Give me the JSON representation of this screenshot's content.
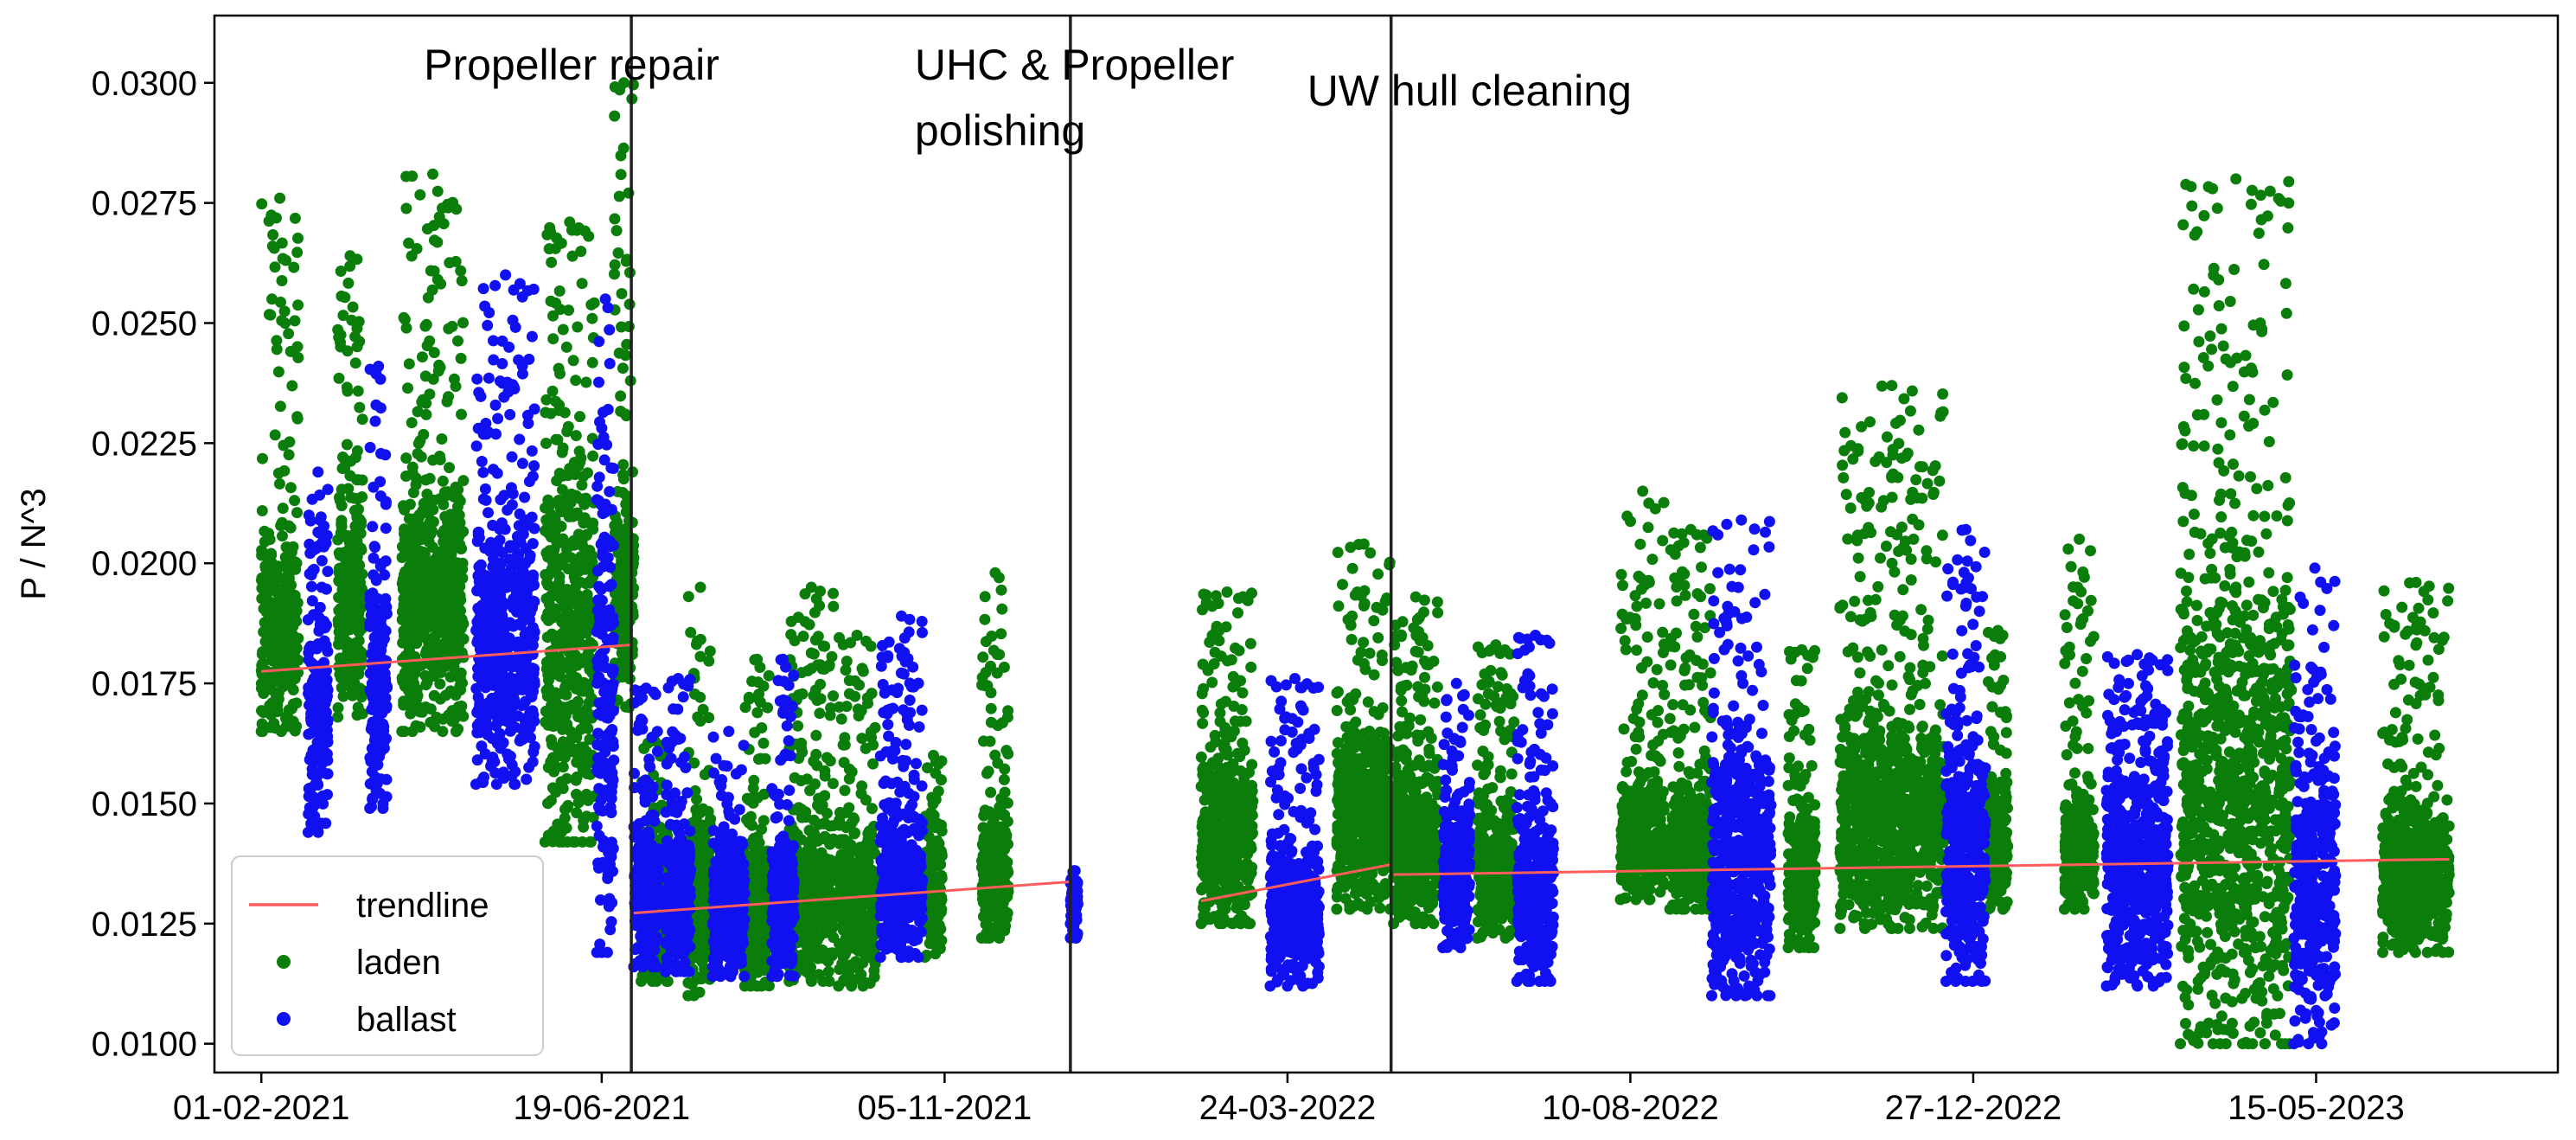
{
  "chart_data": {
    "type": "scatter",
    "title": "",
    "xlabel": "",
    "ylabel": "P / N^3",
    "x_type": "date",
    "xlim": [
      "2021-01-13",
      "2023-08-21"
    ],
    "ylim": [
      0.0094,
      0.0314
    ],
    "x_tick_labels": [
      "01-02-2021",
      "19-06-2021",
      "05-11-2021",
      "24-03-2022",
      "10-08-2022",
      "27-12-2022",
      "15-05-2023"
    ],
    "x_tick_dates": [
      "2021-02-01",
      "2021-06-19",
      "2021-11-05",
      "2022-03-24",
      "2022-08-10",
      "2022-12-27",
      "2023-05-15"
    ],
    "y_ticks": [
      0.01,
      0.0125,
      0.015,
      0.0175,
      0.02,
      0.0225,
      0.025,
      0.0275,
      0.03
    ],
    "y_tick_labels": [
      "0.0100",
      "0.0125",
      "0.0150",
      "0.0175",
      "0.0200",
      "0.0225",
      "0.0250",
      "0.0275",
      "0.0300"
    ],
    "grid": false,
    "legend_position": "bottom-left",
    "legend": [
      {
        "label": "trendline",
        "kind": "line",
        "color": "#ff5c5c"
      },
      {
        "label": "laden",
        "kind": "marker",
        "color": "#0a7d0a"
      },
      {
        "label": "ballast",
        "kind": "marker",
        "color": "#1010f0"
      }
    ],
    "events": [
      {
        "date": "2021-07-01",
        "label_lines": [
          "Propeller repair"
        ]
      },
      {
        "date": "2021-12-26",
        "label_lines": [
          "UHC & Propeller",
          "polishing"
        ]
      },
      {
        "date": "2022-05-05",
        "label_lines": [
          "UW hull cleaning"
        ]
      }
    ],
    "trendlines": [
      {
        "x": [
          "2021-02-01",
          "2021-07-01"
        ],
        "y": [
          0.01775,
          0.0183
        ]
      },
      {
        "x": [
          "2021-07-02",
          "2021-12-26"
        ],
        "y": [
          0.01272,
          0.01337
        ]
      },
      {
        "x": [
          "2022-02-17",
          "2022-05-05"
        ],
        "y": [
          0.01297,
          0.01373
        ]
      },
      {
        "x": [
          "2022-05-06",
          "2023-07-08"
        ],
        "y": [
          0.01352,
          0.01384
        ]
      }
    ],
    "series": [
      {
        "name": "laden",
        "color": "#0a7d0a",
        "clusters": [
          {
            "start": "2021-02-01",
            "end": "2021-02-16",
            "ymin": 0.0165,
            "ymax": 0.0276,
            "center": 0.0186
          },
          {
            "start": "2021-03-04",
            "end": "2021-03-14",
            "ymin": 0.0168,
            "ymax": 0.0264,
            "center": 0.0193
          },
          {
            "start": "2021-03-30",
            "end": "2021-04-24",
            "ymin": 0.0165,
            "ymax": 0.0281,
            "center": 0.0192
          },
          {
            "start": "2021-05-27",
            "end": "2021-06-16",
            "ymin": 0.0142,
            "ymax": 0.0271,
            "center": 0.0187
          },
          {
            "start": "2021-06-24",
            "end": "2021-07-02",
            "ymin": 0.017,
            "ymax": 0.03,
            "center": 0.0192
          },
          {
            "start": "2021-07-05",
            "end": "2021-07-16",
            "ymin": 0.0113,
            "ymax": 0.0163,
            "center": 0.0131
          },
          {
            "start": "2021-07-24",
            "end": "2021-08-03",
            "ymin": 0.011,
            "ymax": 0.0195,
            "center": 0.0131
          },
          {
            "start": "2021-08-16",
            "end": "2021-08-26",
            "ymin": 0.0112,
            "ymax": 0.018,
            "center": 0.0129
          },
          {
            "start": "2021-09-03",
            "end": "2021-09-21",
            "ymin": 0.0113,
            "ymax": 0.0195,
            "center": 0.0131
          },
          {
            "start": "2021-09-23",
            "end": "2021-10-08",
            "ymin": 0.0112,
            "ymax": 0.0185,
            "center": 0.0129
          },
          {
            "start": "2021-10-28",
            "end": "2021-11-04",
            "ymin": 0.0118,
            "ymax": 0.016,
            "center": 0.0133
          },
          {
            "start": "2021-11-20",
            "end": "2021-12-01",
            "ymin": 0.0122,
            "ymax": 0.0198,
            "center": 0.0135
          },
          {
            "start": "2022-02-17",
            "end": "2022-03-10",
            "ymin": 0.0125,
            "ymax": 0.0194,
            "center": 0.0143
          },
          {
            "start": "2022-04-13",
            "end": "2022-05-05",
            "ymin": 0.0128,
            "ymax": 0.0204,
            "center": 0.0148
          },
          {
            "start": "2022-05-06",
            "end": "2022-05-24",
            "ymin": 0.0125,
            "ymax": 0.0193,
            "center": 0.0143
          },
          {
            "start": "2022-06-09",
            "end": "2022-06-24",
            "ymin": 0.0122,
            "ymax": 0.0183,
            "center": 0.0136
          },
          {
            "start": "2022-08-06",
            "end": "2022-08-24",
            "ymin": 0.013,
            "ymax": 0.0215,
            "center": 0.0143
          },
          {
            "start": "2022-08-26",
            "end": "2022-09-12",
            "ymin": 0.0128,
            "ymax": 0.0207,
            "center": 0.0141
          },
          {
            "start": "2022-10-13",
            "end": "2022-10-24",
            "ymin": 0.012,
            "ymax": 0.0182,
            "center": 0.0135
          },
          {
            "start": "2022-11-03",
            "end": "2022-12-15",
            "ymin": 0.0124,
            "ymax": 0.0237,
            "center": 0.0147
          },
          {
            "start": "2023-01-02",
            "end": "2023-01-10",
            "ymin": 0.0128,
            "ymax": 0.0186,
            "center": 0.0141
          },
          {
            "start": "2023-02-02",
            "end": "2023-02-14",
            "ymin": 0.0128,
            "ymax": 0.0205,
            "center": 0.014
          },
          {
            "start": "2023-03-21",
            "end": "2023-05-05",
            "ymin": 0.01,
            "ymax": 0.028,
            "center": 0.0152
          },
          {
            "start": "2023-06-11",
            "end": "2023-07-08",
            "ymin": 0.0119,
            "ymax": 0.0196,
            "center": 0.0135
          }
        ]
      },
      {
        "name": "ballast",
        "color": "#1010f0",
        "clusters": [
          {
            "start": "2021-02-20",
            "end": "2021-02-28",
            "ymin": 0.0144,
            "ymax": 0.0219,
            "center": 0.0168
          },
          {
            "start": "2021-03-17",
            "end": "2021-03-24",
            "ymin": 0.0149,
            "ymax": 0.0241,
            "center": 0.0174
          },
          {
            "start": "2021-04-29",
            "end": "2021-05-23",
            "ymin": 0.0154,
            "ymax": 0.026,
            "center": 0.0183
          },
          {
            "start": "2021-06-17",
            "end": "2021-06-24",
            "ymin": 0.0119,
            "ymax": 0.0255,
            "center": 0.0173
          },
          {
            "start": "2021-07-02",
            "end": "2021-07-12",
            "ymin": 0.0116,
            "ymax": 0.0174,
            "center": 0.0132
          },
          {
            "start": "2021-07-15",
            "end": "2021-07-25",
            "ymin": 0.0115,
            "ymax": 0.0176,
            "center": 0.013
          },
          {
            "start": "2021-08-03",
            "end": "2021-08-16",
            "ymin": 0.0114,
            "ymax": 0.0165,
            "center": 0.013
          },
          {
            "start": "2021-08-27",
            "end": "2021-09-05",
            "ymin": 0.0114,
            "ymax": 0.018,
            "center": 0.013
          },
          {
            "start": "2021-10-10",
            "end": "2021-10-27",
            "ymin": 0.0118,
            "ymax": 0.0189,
            "center": 0.0134
          },
          {
            "start": "2021-12-26",
            "end": "2021-12-29",
            "ymin": 0.0122,
            "ymax": 0.0136,
            "center": 0.0129
          },
          {
            "start": "2022-03-17",
            "end": "2022-04-06",
            "ymin": 0.0112,
            "ymax": 0.0176,
            "center": 0.0127
          },
          {
            "start": "2022-05-26",
            "end": "2022-06-06",
            "ymin": 0.012,
            "ymax": 0.0175,
            "center": 0.0136
          },
          {
            "start": "2022-06-25",
            "end": "2022-07-10",
            "ymin": 0.0113,
            "ymax": 0.0185,
            "center": 0.0131
          },
          {
            "start": "2022-09-12",
            "end": "2022-10-06",
            "ymin": 0.011,
            "ymax": 0.0209,
            "center": 0.0138
          },
          {
            "start": "2022-12-16",
            "end": "2023-01-01",
            "ymin": 0.0113,
            "ymax": 0.0207,
            "center": 0.014
          },
          {
            "start": "2023-02-19",
            "end": "2023-03-16",
            "ymin": 0.0112,
            "ymax": 0.0181,
            "center": 0.0137
          },
          {
            "start": "2023-05-06",
            "end": "2023-05-23",
            "ymin": 0.01,
            "ymax": 0.0199,
            "center": 0.0132
          }
        ]
      }
    ]
  }
}
